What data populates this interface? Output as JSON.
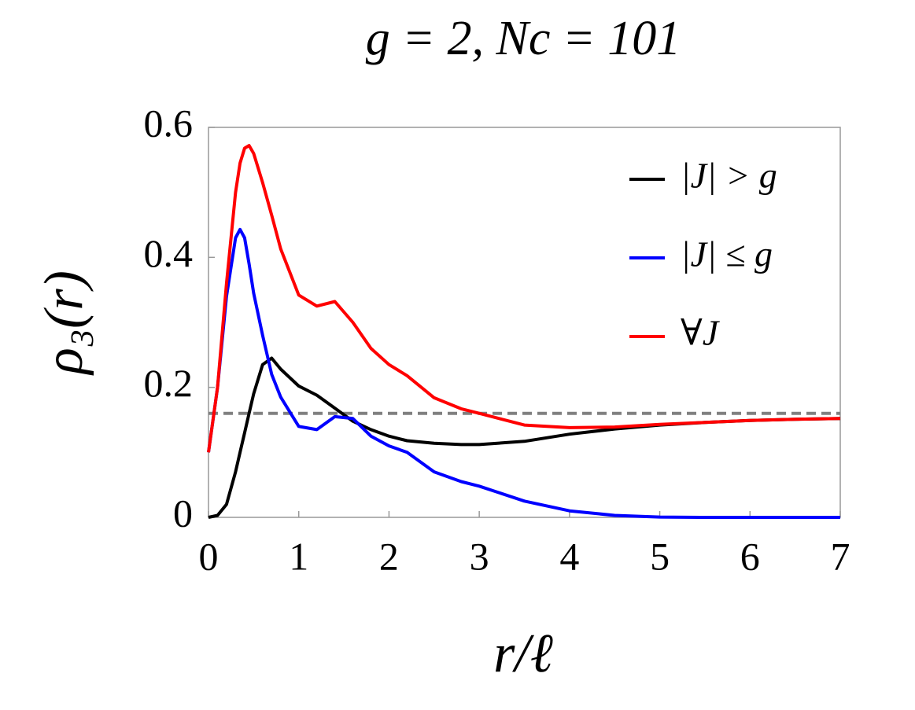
{
  "chart_data": {
    "type": "line",
    "title": "g = 2, Nc = 101",
    "xlabel": "r/ℓ",
    "ylabel": "ρ₃(r)",
    "x": [
      0,
      0.1,
      0.2,
      0.3,
      0.35,
      0.4,
      0.45,
      0.5,
      0.6,
      0.7,
      0.8,
      1.0,
      1.2,
      1.4,
      1.6,
      1.8,
      2.0,
      2.2,
      2.5,
      2.8,
      3.0,
      3.5,
      4.0,
      4.5,
      5.0,
      5.5,
      6.0,
      6.5,
      7.0
    ],
    "series": [
      {
        "name": "|J| > g",
        "color": "#000000",
        "values": [
          0,
          0.003,
          0.02,
          0.07,
          0.1,
          0.13,
          0.16,
          0.19,
          0.235,
          0.245,
          0.228,
          0.202,
          0.188,
          0.168,
          0.148,
          0.135,
          0.125,
          0.118,
          0.114,
          0.112,
          0.112,
          0.117,
          0.128,
          0.136,
          0.142,
          0.146,
          0.149,
          0.151,
          0.152
        ]
      },
      {
        "name": "|J| ≤ g",
        "color": "#0000ff",
        "values": [
          0.1,
          0.2,
          0.34,
          0.43,
          0.443,
          0.43,
          0.39,
          0.345,
          0.28,
          0.22,
          0.185,
          0.14,
          0.135,
          0.155,
          0.152,
          0.125,
          0.11,
          0.1,
          0.07,
          0.055,
          0.048,
          0.025,
          0.01,
          0.003,
          0.0005,
          0,
          0,
          0,
          0
        ]
      },
      {
        "name": "∀J",
        "color": "#ff0000",
        "values": [
          0.1,
          0.2,
          0.36,
          0.5,
          0.545,
          0.568,
          0.572,
          0.56,
          0.515,
          0.465,
          0.413,
          0.342,
          0.325,
          0.332,
          0.3,
          0.26,
          0.235,
          0.218,
          0.184,
          0.167,
          0.16,
          0.142,
          0.138,
          0.139,
          0.143,
          0.146,
          0.149,
          0.151,
          0.152
        ]
      }
    ],
    "reference_line": {
      "value": 0.16,
      "color": "#808080",
      "dashed": true
    },
    "xlim": [
      0,
      7
    ],
    "xticks": [
      0,
      1,
      2,
      3,
      4,
      5,
      6,
      7
    ],
    "ylim": [
      0,
      0.6
    ],
    "yticks": [
      0,
      0.2,
      0.4,
      0.6
    ],
    "legend": "upper right"
  }
}
